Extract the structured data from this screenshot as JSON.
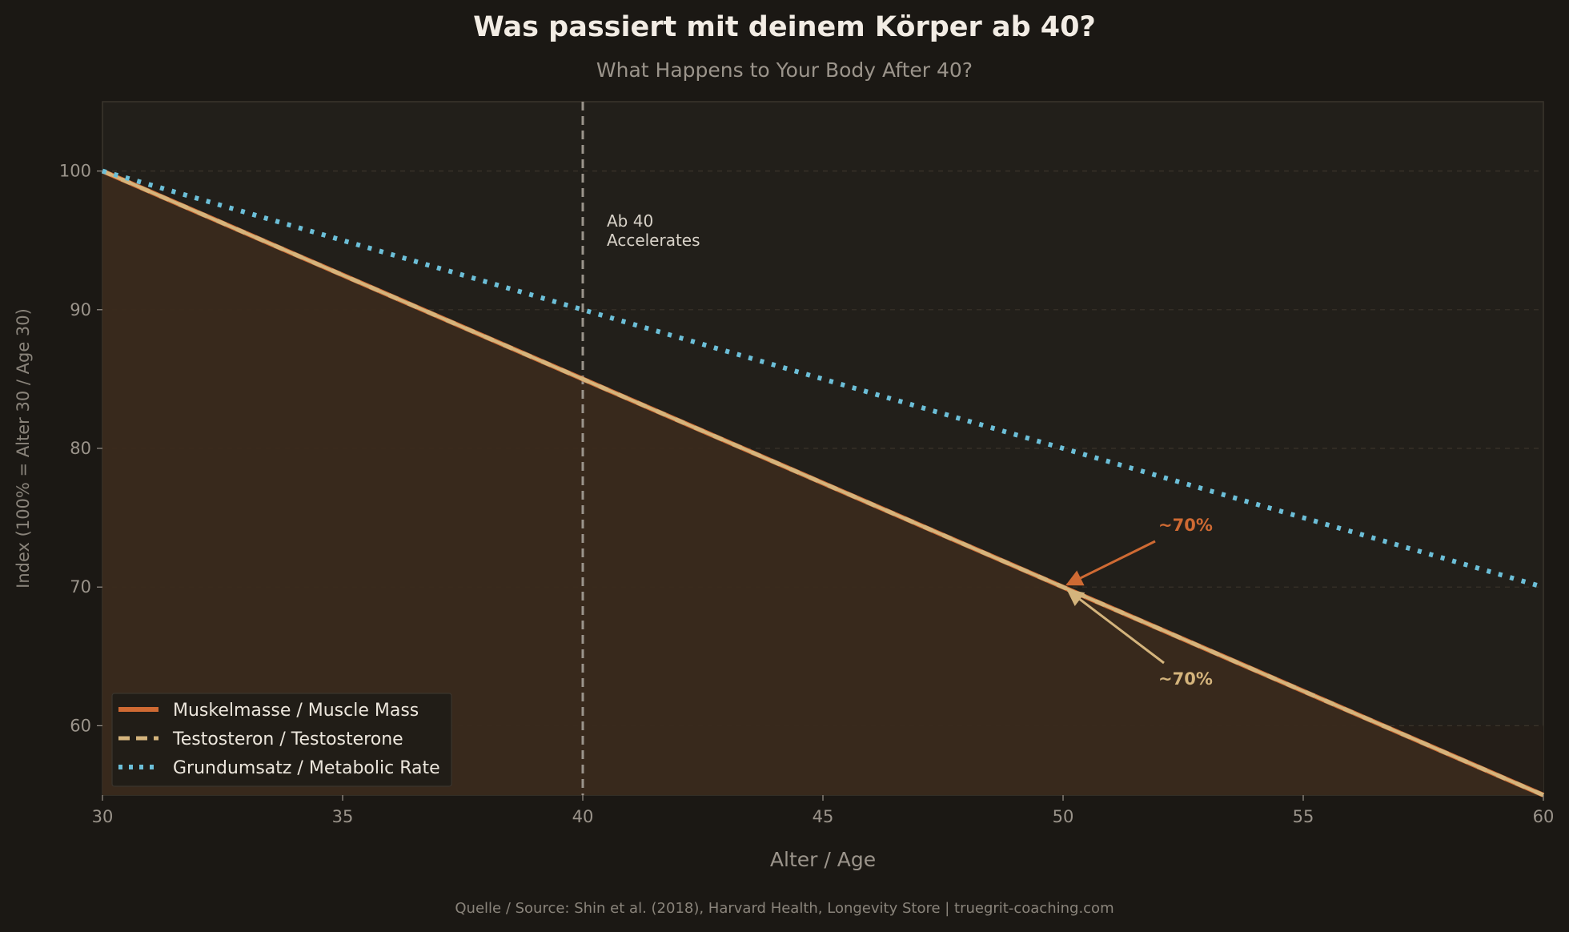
{
  "chart_data": {
    "type": "line",
    "title": "Was passiert mit deinem Körper ab 40?",
    "subtitle": "What Happens to Your Body After 40?",
    "xlabel": "Alter / Age",
    "ylabel": "Index (100% = Alter 30 / Age 30)",
    "xlim": [
      30,
      60
    ],
    "ylim": [
      55,
      105
    ],
    "xticks": [
      30,
      35,
      40,
      45,
      50,
      55,
      60
    ],
    "yticks": [
      60,
      70,
      80,
      90,
      100
    ],
    "grid": "horizontal-dashed",
    "legend_position": "bottom-left",
    "series": [
      {
        "name": "Muskelmasse / Muscle Mass",
        "color": "#cf6a33",
        "style": "solid",
        "x": [
          30,
          40,
          50,
          60
        ],
        "y": [
          100,
          85,
          70,
          55
        ]
      },
      {
        "name": "Testosteron / Testosterone",
        "color": "#d4b47c",
        "style": "dashed",
        "x": [
          30,
          40,
          50,
          60
        ],
        "y": [
          100,
          85,
          70,
          55
        ]
      },
      {
        "name": "Grundumsatz / Metabolic Rate",
        "color": "#6cbfd8",
        "style": "dotted",
        "x": [
          30,
          40,
          50,
          60
        ],
        "y": [
          100,
          90,
          80,
          70
        ]
      }
    ],
    "vline": {
      "x": 40,
      "label_line1": "Ab 40",
      "label_line2": "Accelerates"
    },
    "annotations": [
      {
        "text": "~70%",
        "x": 50,
        "y": 70,
        "color": "#cf6a33"
      },
      {
        "text": "~70%",
        "x": 50,
        "y": 70,
        "color": "#d4b47c"
      }
    ],
    "source": "Quelle / Source: Shin et al. (2018), Harvard Health, Longevity Store | truegrit-coaching.com"
  }
}
